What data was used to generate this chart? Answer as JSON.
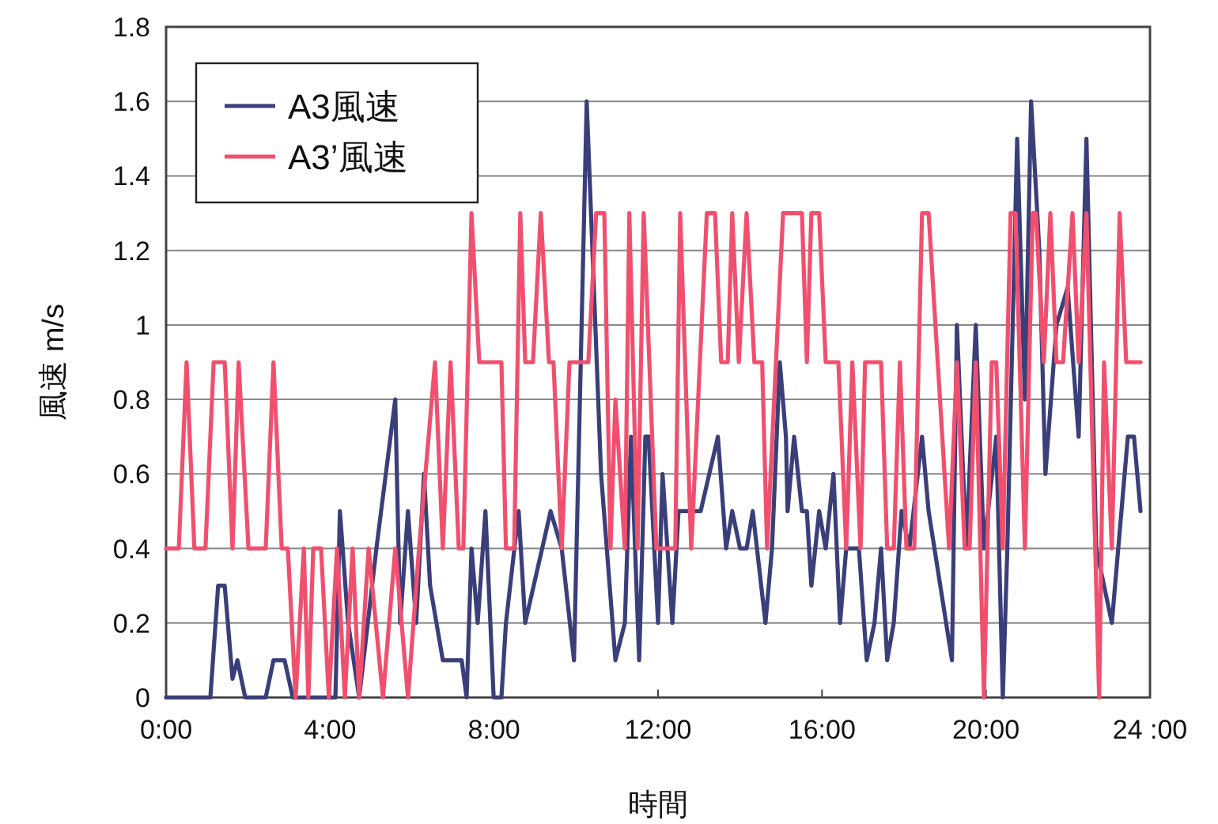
{
  "chart_data": {
    "type": "line",
    "xlabel": "時間",
    "ylabel": "風速 m/s",
    "xlim": [
      0,
      24
    ],
    "ylim": [
      0,
      1.8
    ],
    "xticks": [
      {
        "value": 0,
        "label": "0:00"
      },
      {
        "value": 4,
        "label": "4:00"
      },
      {
        "value": 8,
        "label": "8:00"
      },
      {
        "value": 12,
        "label": "12:00"
      },
      {
        "value": 16,
        "label": "16:00"
      },
      {
        "value": 20,
        "label": "20:00"
      },
      {
        "value": 24,
        "label": "24 :00"
      }
    ],
    "yticks": [
      0,
      0.2,
      0.4,
      0.6,
      0.8,
      1,
      1.2,
      1.4,
      1.6,
      1.8
    ],
    "grid": "y",
    "legend": "top left",
    "series": [
      {
        "name": "A3風速",
        "color": "#3a3f7a",
        "x": [
          0,
          1.08,
          1.27,
          1.43,
          1.62,
          1.74,
          1.93,
          2.43,
          2.62,
          2.89,
          3.09,
          4.13,
          4.24,
          4.44,
          4.71,
          5.13,
          5.59,
          5.71,
          5.9,
          6.1,
          6.29,
          6.44,
          6.75,
          7.21,
          7.33,
          7.45,
          7.6,
          7.79,
          7.99,
          8.18,
          8.29,
          8.6,
          8.76,
          9.38,
          9.65,
          9.95,
          10.26,
          10.61,
          10.96,
          11.19,
          11.34,
          11.54,
          11.69,
          11.77,
          12.0,
          12.11,
          12.35,
          12.5,
          13.04,
          13.46,
          13.66,
          13.81,
          14.0,
          14.16,
          14.31,
          14.62,
          14.78,
          14.97,
          15.12,
          15.16,
          15.32,
          15.51,
          15.63,
          15.74,
          15.93,
          16.09,
          16.28,
          16.44,
          16.59,
          16.9,
          17.09,
          17.28,
          17.44,
          17.59,
          17.75,
          17.94,
          18.13,
          18.44,
          18.6,
          19.17,
          19.29,
          19.52,
          19.75,
          19.95,
          20.25,
          20.41,
          20.52,
          20.76,
          20.95,
          21.1,
          21.3,
          21.45,
          21.72,
          21.99,
          22.26,
          22.45,
          22.69,
          23.07,
          23.46,
          23.61,
          23.77
        ],
        "values": [
          0,
          0,
          0.3,
          0.3,
          0.05,
          0.1,
          0,
          0,
          0.1,
          0.1,
          0,
          0,
          0.5,
          0.2,
          0,
          0.4,
          0.8,
          0.2,
          0.5,
          0.2,
          0.6,
          0.3,
          0.1,
          0.1,
          0,
          0.4,
          0.2,
          0.5,
          0,
          0,
          0.2,
          0.5,
          0.2,
          0.5,
          0.4,
          0.1,
          1.6,
          0.6,
          0.1,
          0.2,
          0.7,
          0.1,
          0.7,
          0.7,
          0.2,
          0.6,
          0.2,
          0.5,
          0.5,
          0.7,
          0.4,
          0.5,
          0.4,
          0.4,
          0.5,
          0.2,
          0.4,
          0.9,
          0.7,
          0.5,
          0.7,
          0.5,
          0.5,
          0.3,
          0.5,
          0.4,
          0.6,
          0.2,
          0.4,
          0.4,
          0.1,
          0.2,
          0.4,
          0.1,
          0.2,
          0.5,
          0.4,
          0.7,
          0.5,
          0.1,
          1.0,
          0.4,
          1.0,
          0.4,
          0.7,
          0,
          0.4,
          1.5,
          0.8,
          1.6,
          1.2,
          0.6,
          1.0,
          1.1,
          0.7,
          1.5,
          0.4,
          0.2,
          0.7,
          0.7,
          0.5
        ]
      },
      {
        "name": "A3’風速",
        "color": "#f0506e",
        "x": [
          0,
          0.31,
          0.5,
          0.69,
          0.96,
          1.16,
          1.43,
          1.62,
          1.77,
          2.01,
          2.43,
          2.62,
          2.82,
          2.97,
          3.16,
          3.36,
          3.47,
          3.59,
          3.78,
          3.97,
          4.17,
          4.36,
          4.55,
          4.71,
          4.94,
          5.29,
          5.59,
          5.9,
          6.17,
          6.56,
          6.75,
          6.94,
          7.14,
          7.25,
          7.45,
          7.64,
          8.18,
          8.29,
          8.49,
          8.64,
          8.76,
          8.95,
          9.14,
          9.34,
          9.45,
          9.65,
          9.84,
          10.3,
          10.49,
          10.69,
          10.84,
          10.96,
          11.19,
          11.3,
          11.5,
          11.65,
          11.96,
          12.42,
          12.54,
          12.81,
          13.19,
          13.39,
          13.54,
          13.7,
          13.81,
          13.97,
          14.16,
          14.35,
          14.54,
          14.66,
          15.05,
          15.51,
          15.63,
          15.74,
          15.93,
          16.09,
          16.4,
          16.59,
          16.74,
          16.94,
          17.05,
          17.44,
          17.59,
          17.75,
          17.9,
          18.06,
          18.25,
          18.44,
          18.6,
          19.1,
          19.29,
          19.48,
          19.6,
          19.75,
          19.95,
          20.14,
          20.25,
          20.41,
          20.6,
          20.72,
          20.95,
          21.14,
          21.22,
          21.41,
          21.57,
          21.72,
          21.88,
          22.11,
          22.26,
          22.45,
          22.76,
          22.88,
          23.07,
          23.26,
          23.42,
          23.77
        ],
        "values": [
          0.4,
          0.4,
          0.9,
          0.4,
          0.4,
          0.9,
          0.9,
          0.4,
          0.9,
          0.4,
          0.4,
          0.9,
          0.4,
          0.4,
          0,
          0.4,
          0,
          0.4,
          0.4,
          0,
          0.4,
          0,
          0.4,
          0,
          0.4,
          0,
          0.4,
          0,
          0.4,
          0.9,
          0.4,
          0.9,
          0.4,
          0.4,
          1.3,
          0.9,
          0.9,
          0.4,
          0.4,
          1.3,
          0.9,
          0.9,
          1.3,
          0.9,
          0.9,
          0.4,
          0.9,
          0.9,
          1.3,
          1.3,
          0.4,
          0.8,
          0.4,
          1.3,
          0.4,
          1.3,
          0.4,
          0.4,
          1.3,
          0.4,
          1.3,
          1.3,
          0.9,
          0.9,
          1.3,
          0.9,
          1.3,
          0.9,
          0.9,
          0.4,
          1.3,
          1.3,
          0.9,
          1.3,
          1.3,
          0.9,
          0.9,
          0.4,
          0.9,
          0.4,
          0.9,
          0.9,
          0.4,
          0.4,
          0.9,
          0.4,
          0.4,
          1.3,
          1.3,
          0.4,
          0.9,
          0.4,
          0.4,
          0.9,
          0,
          0.9,
          0.9,
          0.4,
          1.3,
          1.3,
          0.4,
          1.3,
          1.3,
          0.9,
          1.3,
          0.9,
          0.9,
          1.3,
          0.9,
          1.3,
          0,
          0.9,
          0.4,
          1.3,
          0.9,
          0.9
        ]
      }
    ]
  }
}
